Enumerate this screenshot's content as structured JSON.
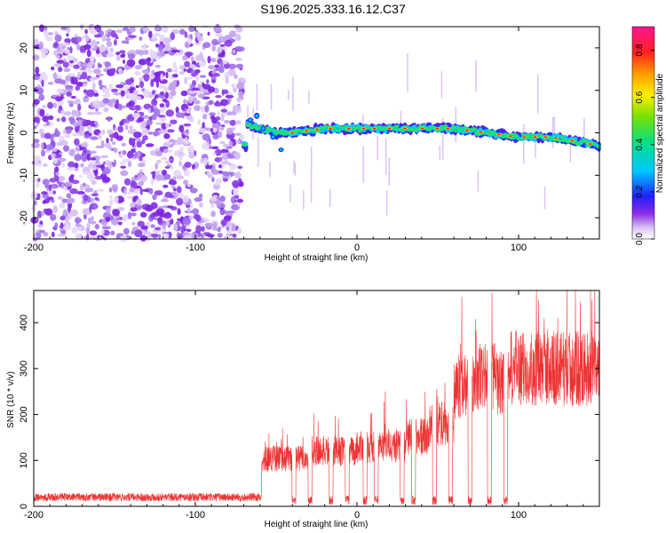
{
  "figure": {
    "title": "S196.2025.333.16.12.C37"
  },
  "chart_data": [
    {
      "type": "heatmap",
      "xlabel": "Height of straight line (km)",
      "ylabel": "Frequency (Hz)",
      "xlim": [
        -200,
        150
      ],
      "ylim": [
        -25,
        25
      ],
      "xticks": [
        -200,
        -100,
        0,
        100
      ],
      "yticks": [
        -20,
        -10,
        0,
        10,
        20
      ],
      "colorbar": {
        "label": "Normalized spectral amplitude",
        "range": [
          0,
          0.9
        ],
        "ticks": [
          0.0,
          0.2,
          0.4,
          0.6,
          0.8
        ]
      },
      "regions": [
        {
          "x_range": [
            -200,
            -71
          ],
          "description": "broadband noise",
          "amplitude": 0.1
        },
        {
          "x_range": [
            -71,
            150
          ],
          "description": "narrow signal band near 0 Hz",
          "amplitude": 0.85
        }
      ],
      "signal_track": [
        {
          "x": -68,
          "f": 2
        },
        {
          "x": -60,
          "f": 1
        },
        {
          "x": -50,
          "f": 0
        },
        {
          "x": -40,
          "f": 0
        },
        {
          "x": -20,
          "f": 1
        },
        {
          "x": 0,
          "f": 1
        },
        {
          "x": 20,
          "f": 1
        },
        {
          "x": 40,
          "f": 1
        },
        {
          "x": 60,
          "f": 1
        },
        {
          "x": 80,
          "f": 0
        },
        {
          "x": 100,
          "f": -1
        },
        {
          "x": 120,
          "f": -1
        },
        {
          "x": 150,
          "f": -3
        }
      ]
    },
    {
      "type": "line",
      "xlabel": "Height of straight line (km)",
      "ylabel": "SNR (10 * v/v)",
      "xlim": [
        -200,
        150
      ],
      "ylim": [
        0,
        470
      ],
      "xticks": [
        -200,
        -100,
        0,
        100
      ],
      "yticks": [
        0,
        100,
        200,
        300,
        400
      ],
      "series_color": "#ee3333",
      "segments": [
        {
          "x_range": [
            -200,
            -59
          ],
          "level": 20
        },
        {
          "x_range": [
            -59,
            -30
          ],
          "level": 105
        },
        {
          "x_range": [
            -30,
            0
          ],
          "level": 120
        },
        {
          "x_range": [
            0,
            30
          ],
          "level": 130
        },
        {
          "x_range": [
            30,
            45
          ],
          "level": 150
        },
        {
          "x_range": [
            45,
            55
          ],
          "level": 180
        },
        {
          "x_range": [
            55,
            60
          ],
          "level": 170
        },
        {
          "x_range": [
            60,
            65
          ],
          "level": 260
        },
        {
          "x_range": [
            65,
            75
          ],
          "level": 270
        },
        {
          "x_range": [
            75,
            85
          ],
          "level": 280
        },
        {
          "x_range": [
            85,
            95
          ],
          "level": 265
        },
        {
          "x_range": [
            95,
            150
          ],
          "level": 300
        }
      ],
      "dips": [
        -39,
        -29,
        -16,
        -6,
        5,
        12,
        28,
        35,
        48,
        58,
        70,
        82,
        92
      ]
    }
  ]
}
